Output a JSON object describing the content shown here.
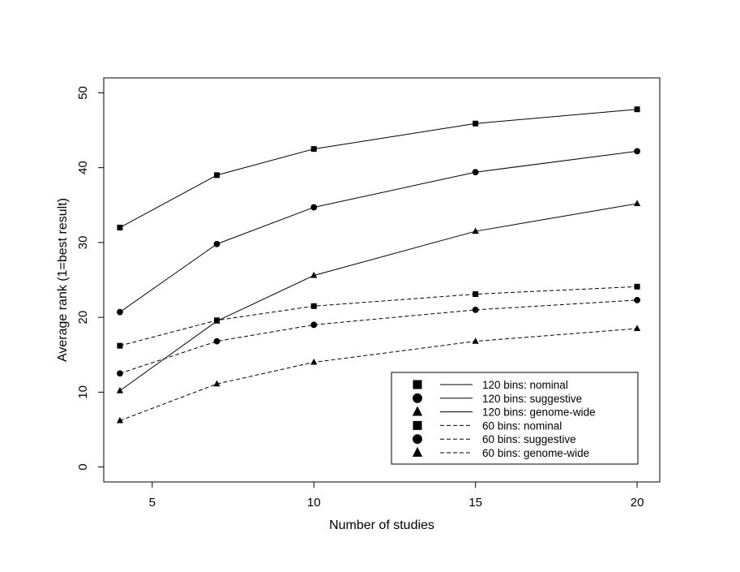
{
  "chart_data": {
    "type": "line",
    "xlabel": "Number of studies",
    "ylabel": "Average rank (1=best result)",
    "xlim": [
      3.5,
      20.7
    ],
    "ylim": [
      -2,
      52
    ],
    "x_ticks": [
      5,
      10,
      15,
      20
    ],
    "y_ticks": [
      0,
      10,
      20,
      30,
      40,
      50
    ],
    "x": [
      4,
      7,
      10,
      15,
      20
    ],
    "grid": false,
    "legend_position": "bottom-right",
    "series": [
      {
        "name": "120 bins: nominal",
        "marker": "square",
        "line": "solid",
        "values": [
          32.0,
          39.0,
          42.5,
          45.9,
          47.8
        ]
      },
      {
        "name": "120 bins: suggestive",
        "marker": "circle",
        "line": "solid",
        "values": [
          20.7,
          29.8,
          34.7,
          39.4,
          42.2
        ]
      },
      {
        "name": "120 bins: genome-wide",
        "marker": "triangle",
        "line": "solid",
        "values": [
          10.2,
          19.5,
          25.6,
          31.5,
          35.2
        ]
      },
      {
        "name": "60 bins: nominal",
        "marker": "square",
        "line": "dashed",
        "values": [
          16.2,
          19.6,
          21.5,
          23.1,
          24.1
        ]
      },
      {
        "name": "60 bins: suggestive",
        "marker": "circle",
        "line": "dashed",
        "values": [
          12.5,
          16.8,
          19.0,
          21.0,
          22.3
        ]
      },
      {
        "name": "60 bins: genome-wide",
        "marker": "triangle",
        "line": "dashed",
        "values": [
          6.2,
          11.1,
          14.0,
          16.8,
          18.5
        ]
      }
    ],
    "colors": {
      "line": "#000000",
      "background": "#ffffff"
    }
  }
}
